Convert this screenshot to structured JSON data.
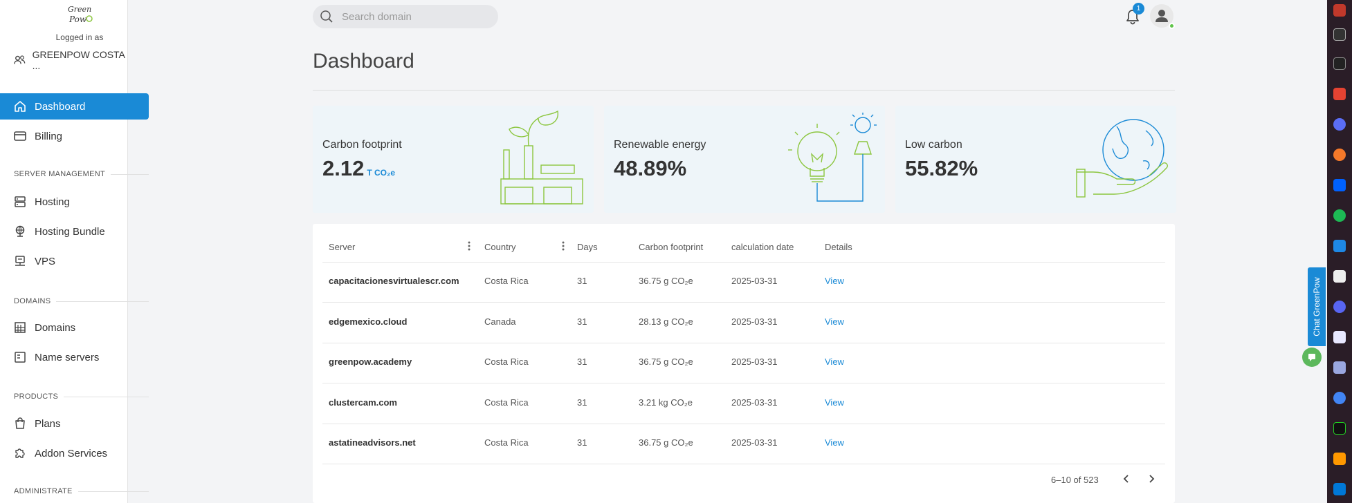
{
  "sidebar": {
    "logged_in_label": "Logged in as",
    "account_name": "GREENPOW COSTA ...",
    "items": [
      {
        "label": "Dashboard",
        "icon": "home-icon",
        "active": true
      },
      {
        "label": "Billing",
        "icon": "credit-card-icon"
      },
      {
        "label": "Hosting",
        "icon": "server-icon"
      },
      {
        "label": "Hosting Bundle",
        "icon": "globe-icon"
      },
      {
        "label": "VPS",
        "icon": "vps-icon"
      },
      {
        "label": "Domains",
        "icon": "building-icon"
      },
      {
        "label": "Name servers",
        "icon": "document-icon"
      },
      {
        "label": "Plans",
        "icon": "shopping-bag-icon"
      },
      {
        "label": "Addon Services",
        "icon": "puzzle-icon"
      }
    ],
    "sections": {
      "server_management": "SERVER MANAGEMENT",
      "domains": "DOMAINS",
      "products": "PRODUCTS",
      "administrate": "ADMINISTRATE"
    }
  },
  "header": {
    "search_placeholder": "Search domain",
    "notification_count": "1"
  },
  "page_title": "Dashboard",
  "cards": [
    {
      "label": "Carbon footprint",
      "value": "2.12",
      "unit": "T CO₂e"
    },
    {
      "label": "Renewable energy",
      "value": "48.89%"
    },
    {
      "label": "Low carbon",
      "value": "55.82%"
    }
  ],
  "table": {
    "columns": [
      "Server",
      "Country",
      "Days",
      "Carbon footprint",
      "calculation date",
      "Details"
    ],
    "rows": [
      {
        "server": "capacitacionesvirtualescr.com",
        "country": "Costa Rica",
        "days": "31",
        "carbon": "36.75 g CO₂e",
        "date": "2025-03-31",
        "details": "View"
      },
      {
        "server": "edgemexico.cloud",
        "country": "Canada",
        "days": "31",
        "carbon": "28.13 g CO₂e",
        "date": "2025-03-31",
        "details": "View"
      },
      {
        "server": "greenpow.academy",
        "country": "Costa Rica",
        "days": "31",
        "carbon": "36.75 g CO₂e",
        "date": "2025-03-31",
        "details": "View"
      },
      {
        "server": "clustercam.com",
        "country": "Costa Rica",
        "days": "31",
        "carbon": "3.21 kg CO₂e",
        "date": "2025-03-31",
        "details": "View"
      },
      {
        "server": "astatineadvisors.net",
        "country": "Costa Rica",
        "days": "31",
        "carbon": "36.75 g CO₂e",
        "date": "2025-03-31",
        "details": "View"
      }
    ],
    "pagination": "6–10 of 523"
  },
  "chat": {
    "label": "Chat GreenPow"
  },
  "colors": {
    "accent": "#1a8ad6",
    "green": "#8cc63f",
    "status_online": "#5fc44a"
  },
  "dock_icons": [
    "app-icon",
    "monitor-icon",
    "terminal-icon",
    "todoist-icon",
    "app-icon",
    "blender-icon",
    "dropbox-icon",
    "spotify-icon",
    "monitor-icon",
    "app-icon",
    "discord-icon",
    "editor-icon",
    "app-icon",
    "chrome-icon",
    "terminal-icon",
    "sublime-icon",
    "vscode-icon"
  ]
}
